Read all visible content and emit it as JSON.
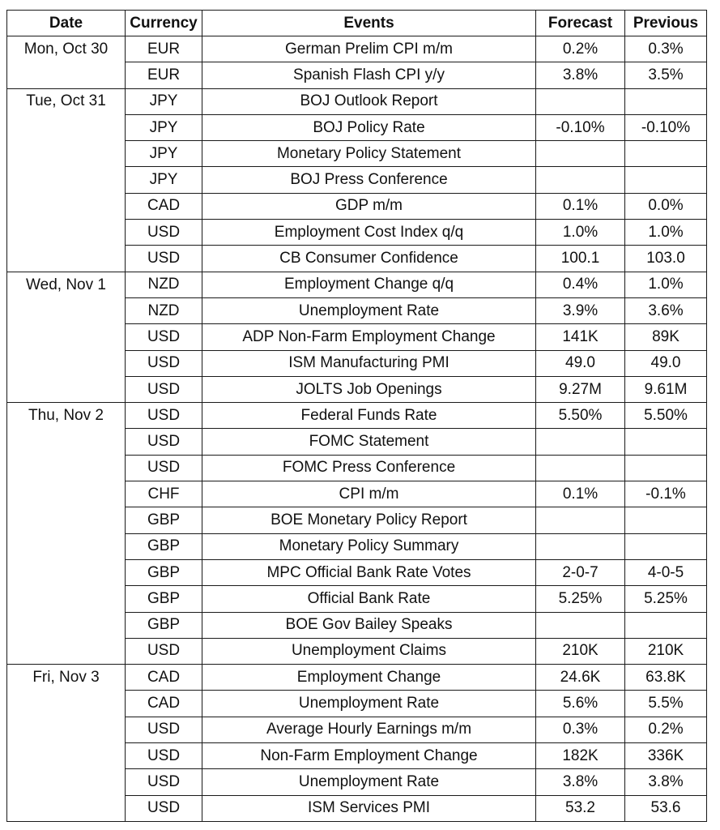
{
  "headers": {
    "date": "Date",
    "currency": "Currency",
    "events": "Events",
    "forecast": "Forecast",
    "previous": "Previous"
  },
  "rows": [
    {
      "date": "Mon, Oct 30",
      "currency": "EUR",
      "event": "German Prelim CPI m/m",
      "forecast": "0.2%",
      "previous": "0.3%"
    },
    {
      "date": "",
      "currency": "EUR",
      "event": "Spanish Flash CPI y/y",
      "forecast": "3.8%",
      "previous": "3.5%"
    },
    {
      "date": "Tue, Oct 31",
      "currency": "JPY",
      "event": "BOJ Outlook Report",
      "forecast": "",
      "previous": ""
    },
    {
      "date": "",
      "currency": "JPY",
      "event": "BOJ Policy Rate",
      "forecast": "-0.10%",
      "previous": "-0.10%"
    },
    {
      "date": "",
      "currency": "JPY",
      "event": "Monetary Policy Statement",
      "forecast": "",
      "previous": ""
    },
    {
      "date": "",
      "currency": "JPY",
      "event": "BOJ Press Conference",
      "forecast": "",
      "previous": ""
    },
    {
      "date": "",
      "currency": "CAD",
      "event": "GDP m/m",
      "forecast": "0.1%",
      "previous": "0.0%"
    },
    {
      "date": "",
      "currency": "USD",
      "event": "Employment Cost Index q/q",
      "forecast": "1.0%",
      "previous": "1.0%"
    },
    {
      "date": "",
      "currency": "USD",
      "event": "CB Consumer Confidence",
      "forecast": "100.1",
      "previous": "103.0"
    },
    {
      "date": "Wed, Nov 1",
      "currency": "NZD",
      "event": "Employment Change q/q",
      "forecast": "0.4%",
      "previous": "1.0%"
    },
    {
      "date": "",
      "currency": "NZD",
      "event": "Unemployment Rate",
      "forecast": "3.9%",
      "previous": "3.6%"
    },
    {
      "date": "",
      "currency": "USD",
      "event": "ADP Non-Farm Employment Change",
      "forecast": "141K",
      "previous": "89K"
    },
    {
      "date": "",
      "currency": "USD",
      "event": "ISM Manufacturing PMI",
      "forecast": "49.0",
      "previous": "49.0"
    },
    {
      "date": "",
      "currency": "USD",
      "event": "JOLTS Job Openings",
      "forecast": "9.27M",
      "previous": "9.61M"
    },
    {
      "date": "Thu, Nov 2",
      "currency": "USD",
      "event": "Federal Funds Rate",
      "forecast": "5.50%",
      "previous": "5.50%"
    },
    {
      "date": "",
      "currency": "USD",
      "event": "FOMC Statement",
      "forecast": "",
      "previous": ""
    },
    {
      "date": "",
      "currency": "USD",
      "event": "FOMC Press Conference",
      "forecast": "",
      "previous": ""
    },
    {
      "date": "",
      "currency": "CHF",
      "event": "CPI m/m",
      "forecast": "0.1%",
      "previous": "-0.1%"
    },
    {
      "date": "",
      "currency": "GBP",
      "event": "BOE Monetary Policy Report",
      "forecast": "",
      "previous": ""
    },
    {
      "date": "",
      "currency": "GBP",
      "event": "Monetary Policy Summary",
      "forecast": "",
      "previous": ""
    },
    {
      "date": "",
      "currency": "GBP",
      "event": "MPC Official Bank Rate Votes",
      "forecast": "2-0-7",
      "previous": "4-0-5"
    },
    {
      "date": "",
      "currency": "GBP",
      "event": "Official Bank Rate",
      "forecast": "5.25%",
      "previous": "5.25%"
    },
    {
      "date": "",
      "currency": "GBP",
      "event": "BOE Gov Bailey Speaks",
      "forecast": "",
      "previous": ""
    },
    {
      "date": "",
      "currency": "USD",
      "event": "Unemployment Claims",
      "forecast": "210K",
      "previous": "210K"
    },
    {
      "date": "Fri, Nov 3",
      "currency": "CAD",
      "event": "Employment Change",
      "forecast": "24.6K",
      "previous": "63.8K"
    },
    {
      "date": "",
      "currency": "CAD",
      "event": "Unemployment Rate",
      "forecast": "5.6%",
      "previous": "5.5%"
    },
    {
      "date": "",
      "currency": "USD",
      "event": "Average Hourly Earnings m/m",
      "forecast": "0.3%",
      "previous": "0.2%"
    },
    {
      "date": "",
      "currency": "USD",
      "event": "Non-Farm Employment Change",
      "forecast": "182K",
      "previous": "336K"
    },
    {
      "date": "",
      "currency": "USD",
      "event": "Unemployment Rate",
      "forecast": "3.8%",
      "previous": "3.8%"
    },
    {
      "date": "",
      "currency": "USD",
      "event": "ISM Services PMI",
      "forecast": "53.2",
      "previous": "53.6"
    }
  ]
}
